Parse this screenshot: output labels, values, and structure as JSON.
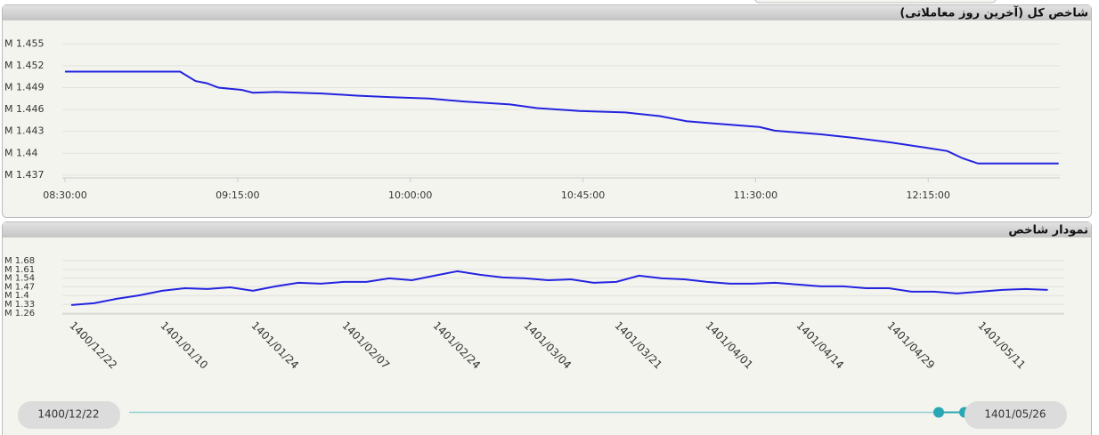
{
  "chart_data": [
    {
      "type": "line",
      "title": "شاخص کل (آخرین روز معاملاتی)",
      "color": "#2323e0",
      "grid": true,
      "x": [
        "08:30:00",
        "09:00:00",
        "09:04:00",
        "09:07:00",
        "09:10:00",
        "09:16:00",
        "09:19:00",
        "09:25:00",
        "09:37:00",
        "09:46:00",
        "09:55:00",
        "10:05:00",
        "10:14:00",
        "10:26:00",
        "10:33:00",
        "10:44:00",
        "10:56:00",
        "11:05:00",
        "11:12:00",
        "11:19:00",
        "11:31:00",
        "11:35:00",
        "11:47:00",
        "11:56:00",
        "12:05:00",
        "12:14:00",
        "12:20:00",
        "12:24:00",
        "12:28:00",
        "12:49:00"
      ],
      "values": [
        1.4512,
        1.4512,
        1.4499,
        1.4496,
        1.449,
        1.4487,
        1.4483,
        1.4484,
        1.4482,
        1.4479,
        1.4477,
        1.4475,
        1.4471,
        1.4467,
        1.4462,
        1.4458,
        1.4456,
        1.4451,
        1.4444,
        1.4441,
        1.4436,
        1.4431,
        1.4426,
        1.4421,
        1.4415,
        1.4408,
        1.4403,
        1.4393,
        1.4386,
        1.4386
      ],
      "xlim": [
        "08:30:00",
        "12:50:00"
      ],
      "xticks": [
        "08:30:00",
        "09:15:00",
        "10:00:00",
        "10:45:00",
        "11:30:00",
        "12:15:00"
      ],
      "ylim": [
        1.4365,
        1.4565
      ],
      "yticks": [
        {
          "value": 1.437,
          "label": "M 1.437"
        },
        {
          "value": 1.44,
          "label": "M 1.44"
        },
        {
          "value": 1.443,
          "label": "M 1.443"
        },
        {
          "value": 1.446,
          "label": "M 1.446"
        },
        {
          "value": 1.449,
          "label": "M 1.449"
        },
        {
          "value": 1.452,
          "label": "M 1.452"
        },
        {
          "value": 1.455,
          "label": "M 1.455"
        }
      ]
    },
    {
      "type": "line",
      "title": "نمودار شاخص",
      "color": "#2323e0",
      "grid": true,
      "categories": [
        "1400/12/22",
        null,
        null,
        null,
        "1401/01/10",
        null,
        null,
        null,
        "1401/01/24",
        null,
        null,
        null,
        "1401/02/07",
        null,
        null,
        null,
        "1401/02/24",
        null,
        null,
        null,
        "1401/03/04",
        null,
        null,
        null,
        "1401/03/21",
        null,
        null,
        null,
        "1401/04/01",
        null,
        null,
        null,
        "1401/04/14",
        null,
        null,
        null,
        "1401/04/29",
        null,
        null,
        null,
        "1401/05/11",
        null,
        null,
        null
      ],
      "values": [
        1.324,
        1.338,
        1.374,
        1.402,
        1.438,
        1.459,
        1.452,
        1.466,
        1.438,
        1.474,
        1.502,
        1.495,
        1.509,
        1.509,
        1.538,
        1.523,
        1.559,
        1.595,
        1.566,
        1.545,
        1.538,
        1.523,
        1.53,
        1.502,
        1.509,
        1.559,
        1.538,
        1.53,
        1.509,
        1.495,
        1.495,
        1.502,
        1.488,
        1.474,
        1.474,
        1.459,
        1.459,
        1.431,
        1.431,
        1.417,
        1.431,
        1.445,
        1.452,
        1.445
      ],
      "ylim": [
        1.245,
        1.708
      ],
      "yticks": [
        {
          "value": 1.26,
          "label": "M 1.26"
        },
        {
          "value": 1.33,
          "label": "M 1.33"
        },
        {
          "value": 1.4,
          "label": "M 1.4"
        },
        {
          "value": 1.47,
          "label": "M 1.47"
        },
        {
          "value": 1.54,
          "label": "M 1.54"
        },
        {
          "value": 1.61,
          "label": "M 1.61"
        },
        {
          "value": 1.68,
          "label": "M 1.68"
        }
      ]
    }
  ],
  "slider": {
    "start": "1400/12/22",
    "end": "1401/05/26"
  }
}
